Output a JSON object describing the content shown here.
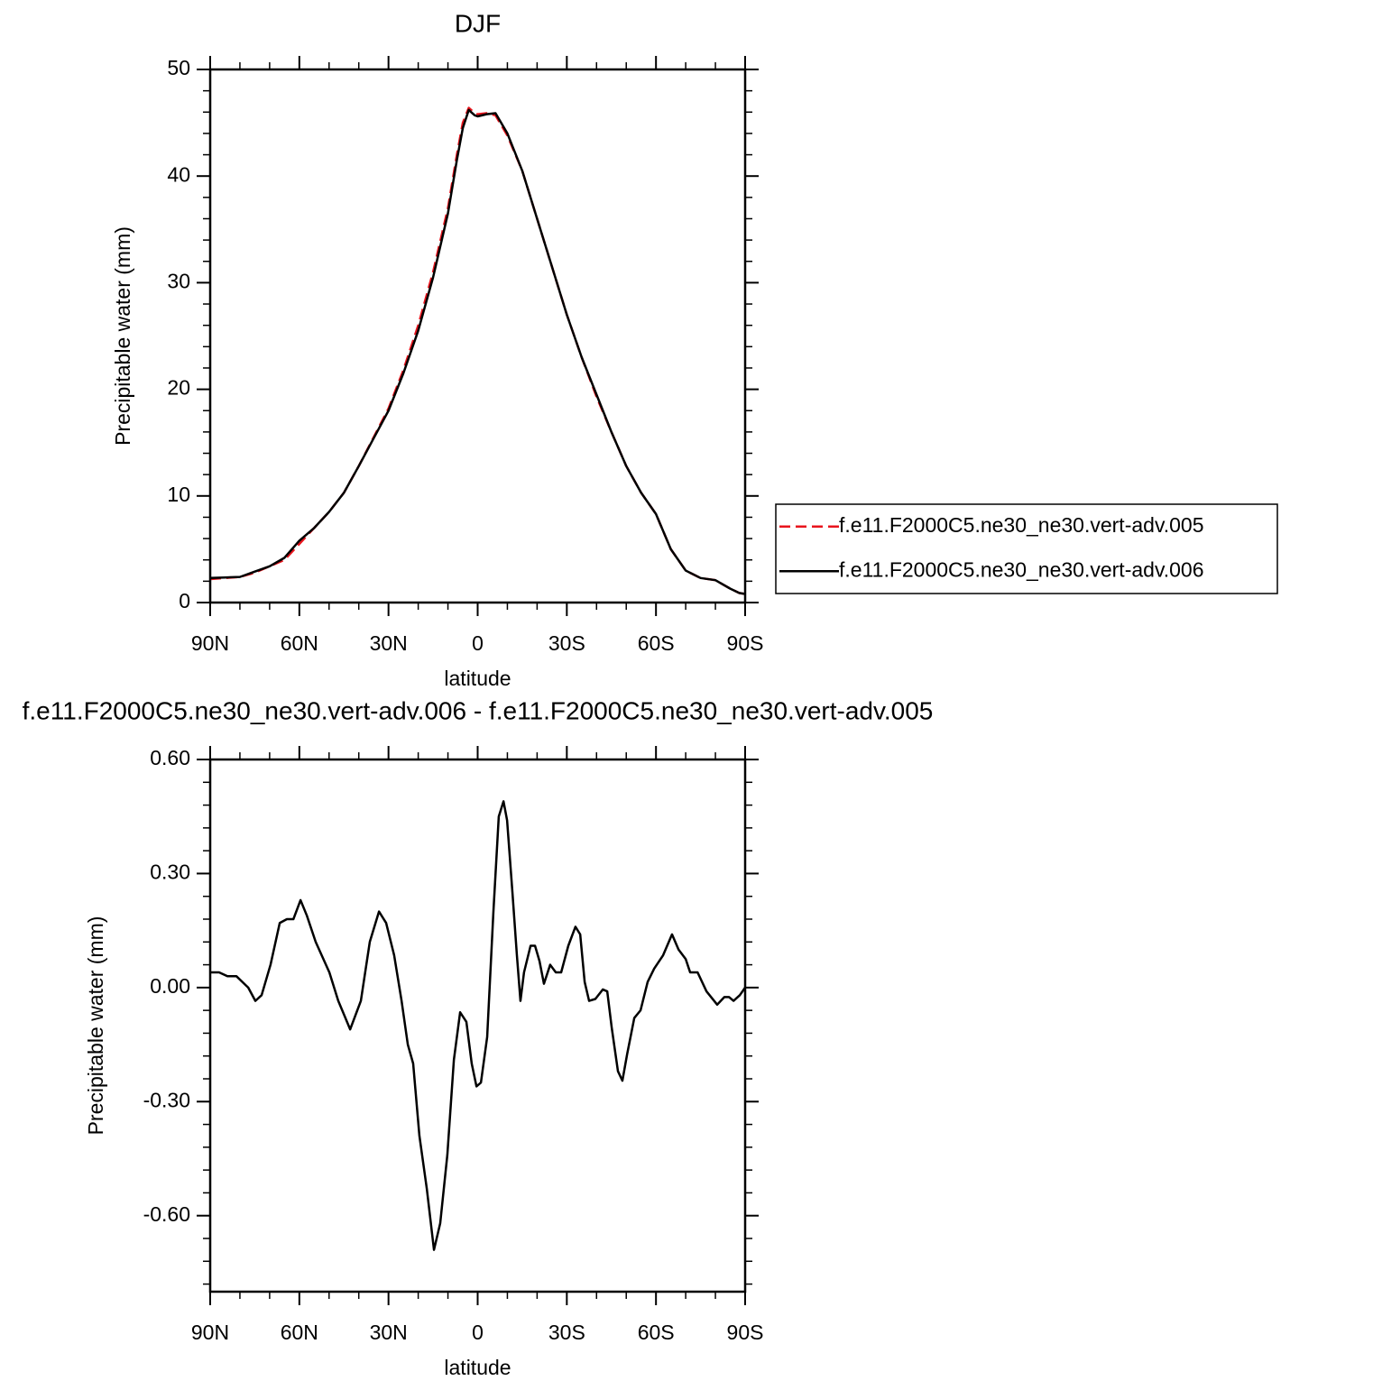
{
  "chart_data": [
    {
      "type": "line",
      "title": "DJF",
      "x_label": "latitude",
      "y_label": "Precipitable water (mm)",
      "x": [
        90,
        85,
        80,
        75,
        70,
        65,
        60,
        55,
        50,
        45,
        40,
        35,
        30,
        25,
        20,
        15,
        10,
        7,
        5,
        3,
        1,
        0,
        -3,
        -6,
        -10,
        -15,
        -20,
        -25,
        -30,
        -35,
        -40,
        -45,
        -50,
        -55,
        -60,
        -65,
        -70,
        -75,
        -80,
        -85,
        -88,
        -90
      ],
      "series": [
        {
          "name": "f.e11.F2000C5.ne30_ne30.vert-adv.005",
          "color": "#e8141c",
          "style": "dashed",
          "values": [
            2.2,
            2.3,
            2.4,
            2.8,
            3.4,
            4.0,
            5.5,
            7.0,
            8.5,
            10.3,
            12.8,
            15.5,
            18.2,
            21.8,
            26.0,
            31.0,
            37.0,
            42.0,
            45.0,
            46.4,
            45.9,
            45.8,
            45.9,
            45.7,
            43.8,
            40.5,
            36.0,
            31.5,
            27.0,
            23.0,
            19.3,
            16.0,
            12.8,
            10.3,
            8.3,
            5.0,
            3.0,
            2.3,
            2.1,
            1.3,
            0.9,
            0.8
          ]
        },
        {
          "name": "f.e11.F2000C5.ne30_ne30.vert-adv.006",
          "color": "#000000",
          "style": "solid",
          "values": [
            2.3,
            2.35,
            2.4,
            2.9,
            3.4,
            4.2,
            5.8,
            7.0,
            8.5,
            10.3,
            12.8,
            15.4,
            18.0,
            21.5,
            25.5,
            30.5,
            36.5,
            41.5,
            44.5,
            46.2,
            45.7,
            45.6,
            45.8,
            45.9,
            44.0,
            40.5,
            36.0,
            31.5,
            27.0,
            23.0,
            19.5,
            16.0,
            12.8,
            10.3,
            8.3,
            5.0,
            3.0,
            2.3,
            2.1,
            1.3,
            0.9,
            0.8
          ]
        }
      ],
      "xlim": [
        90,
        -90
      ],
      "xticks": [
        {
          "value": 90,
          "label": "90N"
        },
        {
          "value": 60,
          "label": "60N"
        },
        {
          "value": 30,
          "label": "30N"
        },
        0,
        {
          "value": -30,
          "label": "30S"
        },
        {
          "value": -60,
          "label": "60S"
        },
        {
          "value": -90,
          "label": "90S"
        }
      ],
      "ylim": [
        0,
        50
      ],
      "yticks": [
        0,
        10,
        20,
        30,
        40,
        50
      ],
      "legend": "right",
      "grid": false
    },
    {
      "type": "line",
      "title": "f.e11.F2000C5.ne30_ne30.vert-adv.006 - f.e11.F2000C5.ne30_ne30.vert-adv.005",
      "x_label": "latitude",
      "y_label": "Precipitable water (mm)",
      "x": [
        90,
        87,
        84.2,
        81.2,
        77.2,
        74.8,
        72.7,
        69.7,
        66.6,
        64.2,
        62,
        59.6,
        57.5,
        54.5,
        49.9,
        46.9,
        42.9,
        39.3,
        36.3,
        33.2,
        30.8,
        28.1,
        25.6,
        23.5,
        21.7,
        19.6,
        17.1,
        14.7,
        12.6,
        10.2,
        8.0,
        5.9,
        3.8,
        2,
        0.4,
        -1.1,
        -3.2,
        -5.3,
        -7.1,
        -8.7,
        -9.9,
        -11.7,
        -13.2,
        -14.4,
        -15.6,
        -17.8,
        -19.3,
        -20.8,
        -22.3,
        -24.4,
        -26.3,
        -28.1,
        -30.5,
        -32.9,
        -34.5,
        -36,
        -37.5,
        -39.6,
        -42.1,
        -43.6,
        -45.1,
        -47.2,
        -48.7,
        -50.3,
        -52.7,
        -54.8,
        -57.2,
        -59.4,
        -62.4,
        -65.4,
        -67.6,
        -70,
        -71.5,
        -74,
        -77,
        -80.6,
        -83,
        -84.6,
        -86.1,
        -88.2,
        -90
      ],
      "series": [
        {
          "color": "#000000",
          "style": "solid",
          "values": [
            0.04,
            0.04,
            0.03,
            0.03,
            0.0,
            -0.035,
            -0.02,
            0.06,
            0.17,
            0.18,
            0.18,
            0.23,
            0.19,
            0.12,
            0.04,
            -0.035,
            -0.11,
            -0.035,
            0.12,
            0.2,
            0.17,
            0.085,
            -0.035,
            -0.15,
            -0.2,
            -0.39,
            -0.53,
            -0.69,
            -0.62,
            -0.44,
            -0.19,
            -0.065,
            -0.09,
            -0.2,
            -0.26,
            -0.25,
            -0.13,
            0.2,
            0.45,
            0.49,
            0.44,
            0.25,
            0.085,
            -0.035,
            0.04,
            0.11,
            0.11,
            0.07,
            0.01,
            0.06,
            0.04,
            0.04,
            0.11,
            0.16,
            0.14,
            0.015,
            -0.035,
            -0.03,
            -0.005,
            -0.01,
            -0.105,
            -0.22,
            -0.245,
            -0.175,
            -0.08,
            -0.06,
            0.015,
            0.05,
            0.085,
            0.14,
            0.1,
            0.075,
            0.04,
            0.04,
            -0.01,
            -0.045,
            -0.025,
            -0.025,
            -0.035,
            -0.02,
            0.0
          ]
        }
      ],
      "xlim": [
        90,
        -90
      ],
      "xticks": [
        {
          "value": 90,
          "label": "90N"
        },
        {
          "value": 60,
          "label": "60N"
        },
        {
          "value": 30,
          "label": "30N"
        },
        0,
        {
          "value": -30,
          "label": "30S"
        },
        {
          "value": -60,
          "label": "60S"
        },
        {
          "value": -90,
          "label": "90S"
        }
      ],
      "ylim": [
        -0.8,
        0.6
      ],
      "yticks": [
        {
          "value": -0.6,
          "label": "-0.60"
        },
        {
          "value": -0.3,
          "label": "-0.30"
        },
        {
          "value": 0,
          "label": "0.00"
        },
        {
          "value": 0.3,
          "label": "0.30"
        },
        {
          "value": 0.6,
          "label": "0.60"
        }
      ],
      "grid": false
    }
  ]
}
